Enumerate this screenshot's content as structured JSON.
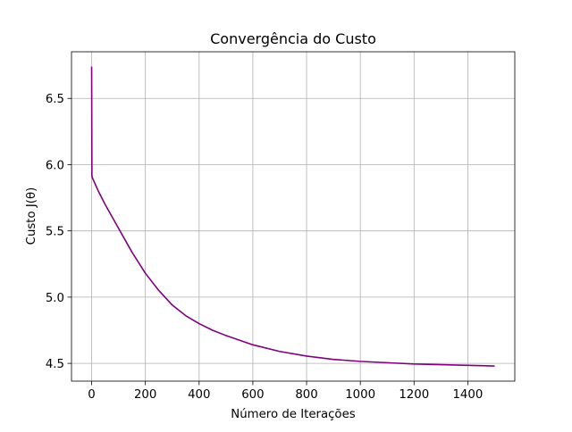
{
  "chart_data": {
    "type": "line",
    "title": "Convergência do Custo",
    "xlabel": "Número de Iterações",
    "ylabel": "Custo J(θ)",
    "xlim": [
      -75,
      1575
    ],
    "ylim": [
      4.366,
      6.852
    ],
    "xticks": [
      0,
      200,
      400,
      600,
      800,
      1000,
      1200,
      1400
    ],
    "xtick_labels": [
      "0",
      "200",
      "400",
      "600",
      "800",
      "1000",
      "1200",
      "1400"
    ],
    "yticks": [
      4.5,
      5.0,
      5.5,
      6.0,
      6.5
    ],
    "ytick_labels": [
      "4.5",
      "5.0",
      "5.5",
      "6.0",
      "6.5"
    ],
    "grid": true,
    "series": [
      {
        "color": "#800080",
        "x": [
          0,
          1,
          2,
          3,
          5,
          25,
          50,
          100,
          150,
          200,
          250,
          300,
          350,
          400,
          450,
          500,
          600,
          700,
          800,
          900,
          1000,
          1100,
          1200,
          1300,
          1400,
          1500
        ],
        "y": [
          6.74,
          5.92,
          5.905,
          5.9,
          5.89,
          5.8,
          5.7,
          5.52,
          5.34,
          5.18,
          5.05,
          4.94,
          4.86,
          4.8,
          4.75,
          4.71,
          4.64,
          4.59,
          4.555,
          4.53,
          4.515,
          4.505,
          4.495,
          4.49,
          4.485,
          4.48
        ]
      }
    ]
  }
}
